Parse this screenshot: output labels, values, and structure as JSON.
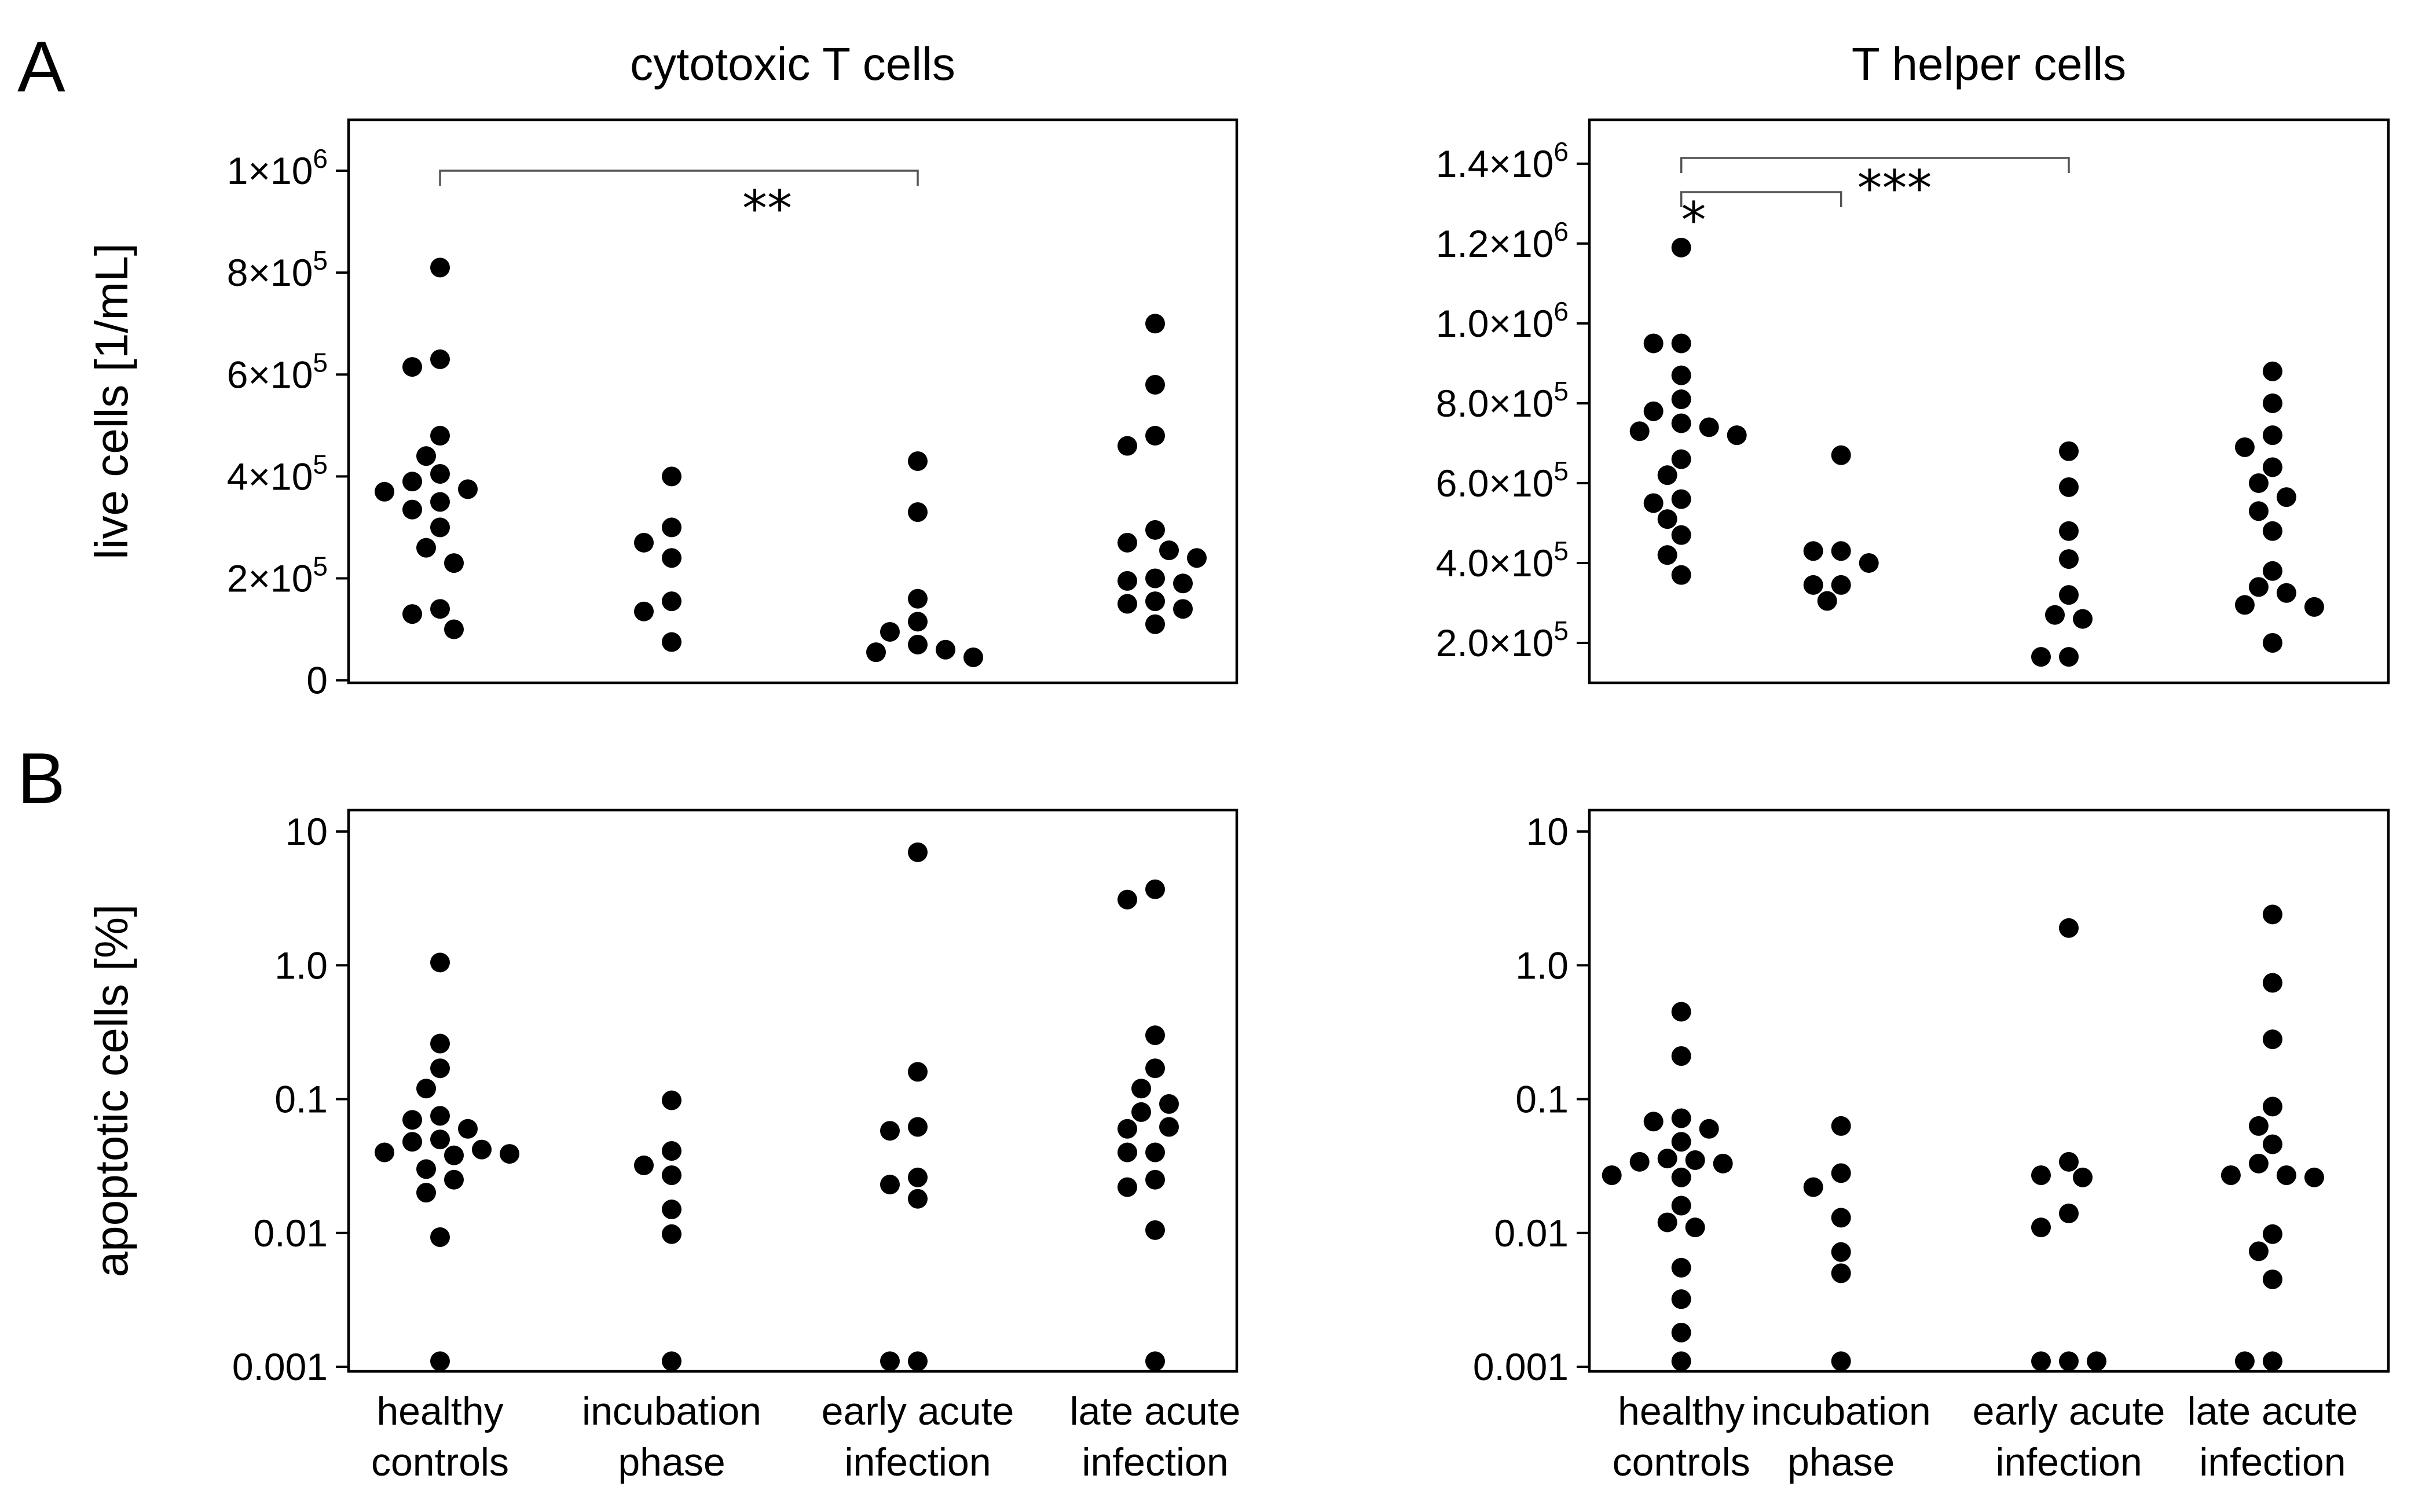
{
  "figure": {
    "panel_labels": [
      "A",
      "B"
    ],
    "categories": [
      [
        "healthy",
        "controls"
      ],
      [
        "incubation",
        "phase"
      ],
      [
        "early acute",
        "infection"
      ],
      [
        "late acute",
        "infection"
      ]
    ]
  },
  "chart_data": [
    {
      "type": "scatter",
      "panel": "A",
      "title": "cytotoxic T cells",
      "ylabel": "live cells [1/mL]",
      "xlabel": "",
      "scale": "linear",
      "ylim": [
        -5000,
        1100000
      ],
      "yticks": [
        {
          "value": 0,
          "label": "0"
        },
        {
          "value": 200000,
          "label": "2×10⁵"
        },
        {
          "value": 400000,
          "label": "4×10⁵"
        },
        {
          "value": 600000,
          "label": "6×10⁵"
        },
        {
          "value": 800000,
          "label": "8×10⁵"
        },
        {
          "value": 1000000,
          "label": "1×10⁶"
        }
      ],
      "groups": [
        {
          "category": "healthy controls",
          "values": [
            810000,
            630000,
            615000,
            480000,
            440000,
            405000,
            390000,
            375000,
            370000,
            350000,
            335000,
            300000,
            260000,
            230000,
            140000,
            130000,
            100000
          ]
        },
        {
          "category": "incubation phase",
          "values": [
            400000,
            300000,
            270000,
            240000,
            155000,
            135000,
            75000
          ]
        },
        {
          "category": "early acute infection",
          "values": [
            430000,
            330000,
            160000,
            115000,
            95000,
            70000,
            60000,
            55000,
            45000
          ]
        },
        {
          "category": "late acute infection",
          "values": [
            700000,
            580000,
            480000,
            460000,
            295000,
            270000,
            255000,
            240000,
            200000,
            195000,
            190000,
            155000,
            150000,
            140000,
            110000
          ]
        }
      ],
      "significance": [
        {
          "from": "healthy controls",
          "to": "early acute infection",
          "label": "**"
        }
      ]
    },
    {
      "type": "scatter",
      "panel": "A",
      "title": "T helper cells",
      "ylabel": "",
      "xlabel": "",
      "scale": "linear",
      "ylim": [
        100000,
        1510000
      ],
      "yticks": [
        {
          "value": 200000,
          "label": "2.0×10⁵"
        },
        {
          "value": 400000,
          "label": "4.0×10⁵"
        },
        {
          "value": 600000,
          "label": "6.0×10⁵"
        },
        {
          "value": 800000,
          "label": "8.0×10⁵"
        },
        {
          "value": 1000000,
          "label": "1.0×10⁶"
        },
        {
          "value": 1200000,
          "label": "1.2×10⁶"
        },
        {
          "value": 1400000,
          "label": "1.4×10⁶"
        }
      ],
      "groups": [
        {
          "category": "healthy controls",
          "values": [
            1190000,
            950000,
            950000,
            870000,
            810000,
            780000,
            750000,
            740000,
            730000,
            720000,
            660000,
            620000,
            560000,
            550000,
            510000,
            470000,
            420000,
            370000
          ]
        },
        {
          "category": "incubation phase",
          "values": [
            670000,
            430000,
            430000,
            400000,
            345000,
            345000,
            305000
          ]
        },
        {
          "category": "early acute infection",
          "values": [
            680000,
            590000,
            480000,
            410000,
            320000,
            270000,
            260000,
            165000,
            165000
          ]
        },
        {
          "category": "late acute infection",
          "values": [
            880000,
            800000,
            720000,
            690000,
            640000,
            600000,
            565000,
            530000,
            480000,
            380000,
            340000,
            325000,
            295000,
            290000,
            200000
          ]
        }
      ],
      "significance": [
        {
          "from": "healthy controls",
          "to": "incubation phase",
          "label": "*"
        },
        {
          "from": "healthy controls",
          "to": "early acute infection",
          "label": "***"
        }
      ]
    },
    {
      "type": "scatter",
      "panel": "B",
      "title": "",
      "ylabel": "apoptotic cells [%]",
      "xlabel": "",
      "scale": "log",
      "ylim": [
        0.001,
        10
      ],
      "yticks": [
        {
          "value": 0.001,
          "label": "0.001"
        },
        {
          "value": 0.01,
          "label": "0.01"
        },
        {
          "value": 0.1,
          "label": "0.1"
        },
        {
          "value": 1,
          "label": "1.0"
        },
        {
          "value": 10,
          "label": "10"
        }
      ],
      "groups": [
        {
          "category": "healthy controls",
          "values": [
            1.05,
            0.26,
            0.17,
            0.12,
            0.075,
            0.07,
            0.06,
            0.05,
            0.048,
            0.042,
            0.04,
            0.039,
            0.038,
            0.03,
            0.025,
            0.02,
            0.0093,
            0.0011
          ]
        },
        {
          "category": "incubation phase",
          "values": [
            0.098,
            0.041,
            0.032,
            0.027,
            0.015,
            0.0098,
            0.0011
          ]
        },
        {
          "category": "early acute infection",
          "values": [
            7.0,
            0.16,
            0.062,
            0.058,
            0.026,
            0.023,
            0.018,
            0.0011,
            0.0011
          ]
        },
        {
          "category": "late acute infection",
          "values": [
            3.7,
            3.1,
            0.3,
            0.17,
            0.12,
            0.092,
            0.08,
            0.062,
            0.06,
            0.04,
            0.04,
            0.025,
            0.022,
            0.0105,
            0.0011
          ]
        }
      ],
      "significance": []
    },
    {
      "type": "scatter",
      "panel": "B",
      "title": "",
      "ylabel": "",
      "xlabel": "",
      "scale": "log",
      "ylim": [
        0.001,
        10
      ],
      "yticks": [
        {
          "value": 0.001,
          "label": "0.001"
        },
        {
          "value": 0.01,
          "label": "0.01"
        },
        {
          "value": 0.1,
          "label": "0.1"
        },
        {
          "value": 1,
          "label": "1.0"
        },
        {
          "value": 10,
          "label": "10"
        }
      ],
      "groups": [
        {
          "category": "healthy controls",
          "values": [
            0.45,
            0.21,
            0.072,
            0.068,
            0.06,
            0.048,
            0.036,
            0.035,
            0.034,
            0.033,
            0.026,
            0.027,
            0.016,
            0.012,
            0.011,
            0.0055,
            0.0032,
            0.0018,
            0.0011
          ]
        },
        {
          "category": "incubation phase",
          "values": [
            0.063,
            0.028,
            0.022,
            0.013,
            0.0072,
            0.005,
            0.0011
          ]
        },
        {
          "category": "early acute infection",
          "values": [
            1.9,
            0.034,
            0.027,
            0.026,
            0.014,
            0.011,
            0.0011,
            0.0011,
            0.0011
          ]
        },
        {
          "category": "late acute infection",
          "values": [
            2.4,
            0.74,
            0.28,
            0.088,
            0.063,
            0.046,
            0.033,
            0.027,
            0.027,
            0.026,
            0.0098,
            0.0073,
            0.0045,
            0.0011,
            0.0011
          ]
        }
      ],
      "significance": []
    }
  ]
}
